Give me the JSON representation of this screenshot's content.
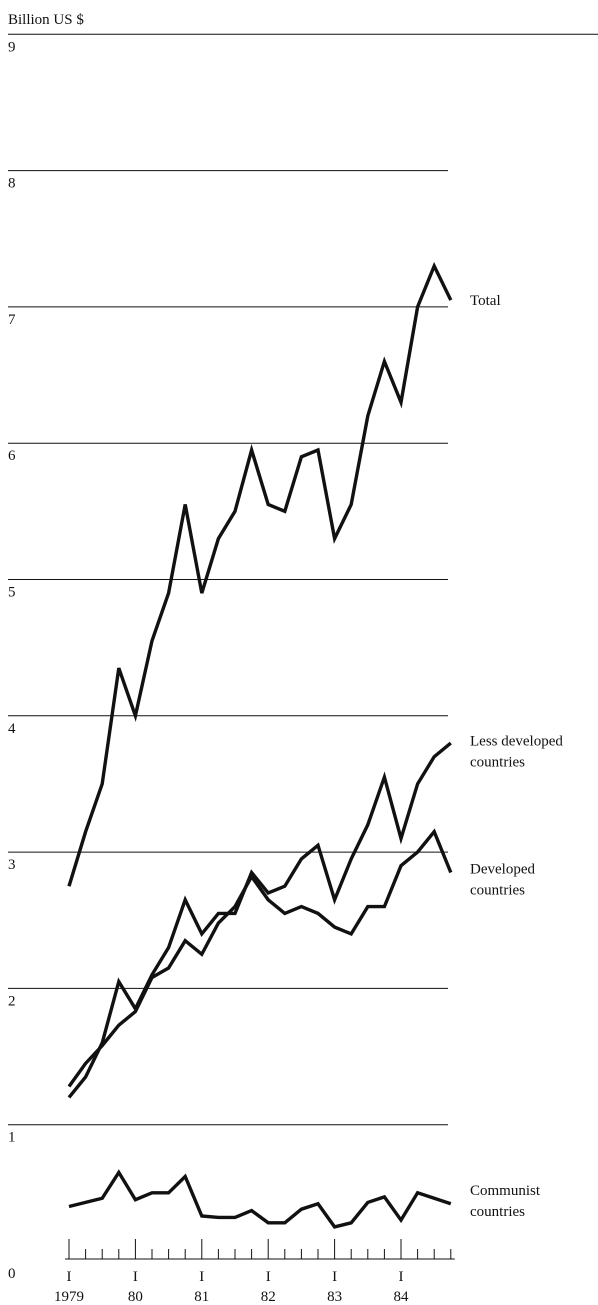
{
  "chart_data": {
    "type": "line",
    "ylabel": "Billion US $",
    "ylim": [
      0,
      9
    ],
    "yticks": [
      "0",
      "1",
      "2",
      "3",
      "4",
      "5",
      "6",
      "7",
      "8",
      "9"
    ],
    "grid": true,
    "x": [
      "1979 Q1",
      "1979 Q2",
      "1979 Q3",
      "1979 Q4",
      "1980 Q1",
      "1980 Q2",
      "1980 Q3",
      "1980 Q4",
      "1981 Q1",
      "1981 Q2",
      "1981 Q3",
      "1981 Q4",
      "1982 Q1",
      "1982 Q2",
      "1982 Q3",
      "1982 Q4",
      "1983 Q1",
      "1983 Q2",
      "1983 Q3",
      "1983 Q4",
      "1984 Q1",
      "1984 Q2",
      "1984 Q3",
      "1984 Q4"
    ],
    "quarter_marker": "I",
    "year_labels": [
      "1979",
      "80",
      "81",
      "82",
      "83",
      "84"
    ],
    "series": [
      {
        "name": "Total",
        "values": [
          2.75,
          3.15,
          3.5,
          4.35,
          4.0,
          4.55,
          4.9,
          5.55,
          4.9,
          5.3,
          5.5,
          5.95,
          5.55,
          5.5,
          5.9,
          5.95,
          5.3,
          5.55,
          6.2,
          6.6,
          6.3,
          7.0,
          7.3,
          7.05
        ]
      },
      {
        "name": "Less developed countries",
        "values": [
          1.2,
          1.35,
          1.6,
          2.05,
          1.85,
          2.1,
          2.3,
          2.65,
          2.4,
          2.55,
          2.55,
          2.85,
          2.7,
          2.75,
          2.95,
          3.05,
          2.65,
          2.95,
          3.2,
          3.55,
          3.1,
          3.5,
          3.7,
          3.8
        ]
      },
      {
        "name": "Developed countries",
        "values": [
          1.28,
          1.45,
          1.58,
          1.73,
          1.83,
          2.08,
          2.15,
          2.35,
          2.25,
          2.48,
          2.6,
          2.82,
          2.65,
          2.55,
          2.6,
          2.55,
          2.45,
          2.4,
          2.6,
          2.6,
          2.9,
          3.0,
          3.15,
          2.85
        ]
      },
      {
        "name": "Communist countries",
        "values": [
          0.4,
          0.43,
          0.46,
          0.65,
          0.45,
          0.5,
          0.5,
          0.62,
          0.33,
          0.32,
          0.32,
          0.37,
          0.28,
          0.28,
          0.38,
          0.42,
          0.25,
          0.28,
          0.43,
          0.47,
          0.3,
          0.5,
          0.46,
          0.42
        ]
      }
    ],
    "series_labels": [
      {
        "lines": [
          "Total"
        ]
      },
      {
        "lines": [
          "Less developed",
          "countries"
        ]
      },
      {
        "lines": [
          "Developed",
          "countries"
        ]
      },
      {
        "lines": [
          "Communist",
          "countries"
        ]
      }
    ]
  }
}
